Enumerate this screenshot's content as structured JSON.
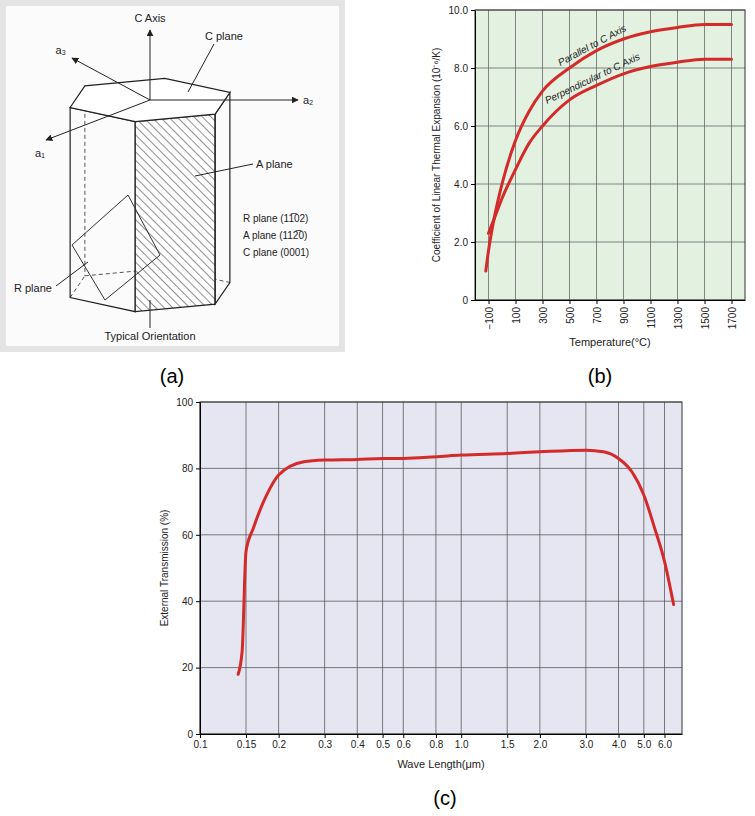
{
  "panel_labels": [
    "(a)",
    "(b)",
    "(c)"
  ],
  "diagram": {
    "axis_labels": {
      "c": "C Axis",
      "a1": "a₁",
      "a2": "a₂",
      "a3": "a₃"
    },
    "plane_labels": {
      "c": "C plane",
      "a": "A plane",
      "r": "R plane"
    },
    "orientations": [
      "R plane (11̅02)",
      "A plane (112̅0)",
      "C plane (0001)"
    ],
    "caption": "Typical Orientation"
  },
  "chart_data": [
    {
      "type": "line",
      "x": [
        -120,
        -100,
        -50,
        0,
        100,
        200,
        300,
        500,
        700,
        900,
        1100,
        1300,
        1500,
        1700
      ],
      "series": [
        {
          "name": "Parallel to C Axis",
          "color": "#d42a2a",
          "values": [
            1.0,
            1.7,
            3.0,
            4.0,
            5.5,
            6.5,
            7.2,
            8.0,
            8.6,
            9.0,
            9.25,
            9.4,
            9.5,
            9.5
          ]
        },
        {
          "name": "Perpendicular to C Axis",
          "color": "#d42a2a",
          "values": [
            null,
            2.3,
            2.9,
            3.5,
            4.5,
            5.4,
            6.0,
            6.9,
            7.4,
            7.8,
            8.05,
            8.2,
            8.3,
            8.3
          ]
        }
      ],
      "x_label": "Temperature(°C)",
      "y_label": "Coefficient of Linear Thermal Expansion (10⁻⁶/K)",
      "xlim": [
        -200,
        1800
      ],
      "ylim": [
        0,
        10
      ],
      "xticks": [
        {
          "value": -100,
          "label": "−100"
        },
        100,
        300,
        500,
        700,
        900,
        1100,
        1300,
        1500,
        1700
      ],
      "yticks": [
        0,
        {
          "value": 2,
          "label": "2.0"
        },
        {
          "value": 4,
          "label": "4.0"
        },
        {
          "value": 6,
          "label": "6.0"
        },
        {
          "value": 8,
          "label": "8.0"
        },
        {
          "value": 10,
          "label": "10.0"
        }
      ],
      "grid": true
    },
    {
      "type": "line",
      "log": "x",
      "x": [
        0.14,
        0.145,
        0.15,
        0.16,
        0.18,
        0.2,
        0.25,
        0.3,
        0.4,
        0.5,
        0.6,
        0.8,
        1.0,
        1.5,
        2.0,
        3.0,
        3.5,
        4.0,
        4.5,
        5.0,
        5.5,
        6.0,
        6.5
      ],
      "values": [
        18,
        25,
        55,
        62,
        72,
        78,
        82,
        82.5,
        82.7,
        83,
        83,
        83.5,
        84,
        84.5,
        85,
        85.5,
        85,
        83,
        79,
        72,
        62,
        52,
        39
      ],
      "color": "#d42a2a",
      "x_label": "Wave Length(μm)",
      "y_label": "External Transmission (%)",
      "xlim": [
        0.1,
        7
      ],
      "ylim": [
        0,
        100
      ],
      "xticks": [
        0.1,
        0.15,
        0.2,
        0.3,
        0.4,
        0.5,
        0.6,
        0.8,
        {
          "value": 1,
          "label": "1.0"
        },
        1.5,
        {
          "value": 2,
          "label": "2.0"
        },
        {
          "value": 3,
          "label": "3.0"
        },
        {
          "value": 4,
          "label": "4.0"
        },
        {
          "value": 5,
          "label": "5.0"
        },
        {
          "value": 6,
          "label": "6.0"
        }
      ],
      "yticks": [
        0,
        20,
        40,
        60,
        80,
        100
      ],
      "grid": true
    }
  ]
}
